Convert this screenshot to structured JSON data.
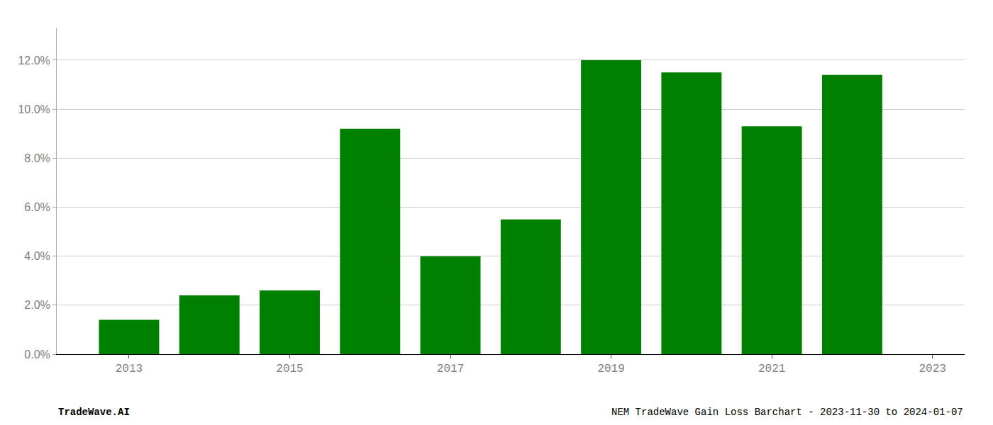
{
  "chart_data": {
    "type": "bar",
    "x": [
      2013,
      2014,
      2015,
      2016,
      2017,
      2018,
      2019,
      2020,
      2021,
      2022
    ],
    "values": [
      0.014,
      0.024,
      0.026,
      0.092,
      0.04,
      0.055,
      0.12,
      0.115,
      0.093,
      0.114
    ],
    "color": "#008000",
    "xlim": [
      2012.1,
      2023.4
    ],
    "xticks": [
      2013,
      2015,
      2017,
      2019,
      2021,
      2023
    ],
    "ylim": [
      0,
      0.133
    ],
    "yticks": [
      {
        "value": 0.0,
        "label": "0.0%"
      },
      {
        "value": 0.02,
        "label": "2.0%"
      },
      {
        "value": 0.04,
        "label": "4.0%"
      },
      {
        "value": 0.06,
        "label": "6.0%"
      },
      {
        "value": 0.08,
        "label": "8.0%"
      },
      {
        "value": 0.1,
        "label": "10.0%"
      },
      {
        "value": 0.12,
        "label": "12.0%"
      }
    ],
    "grid": true,
    "annotations": [
      "TradeWave.AI",
      "NEM TradeWave Gain Loss Barchart - 2023-11-30 to 2024-01-07"
    ]
  }
}
